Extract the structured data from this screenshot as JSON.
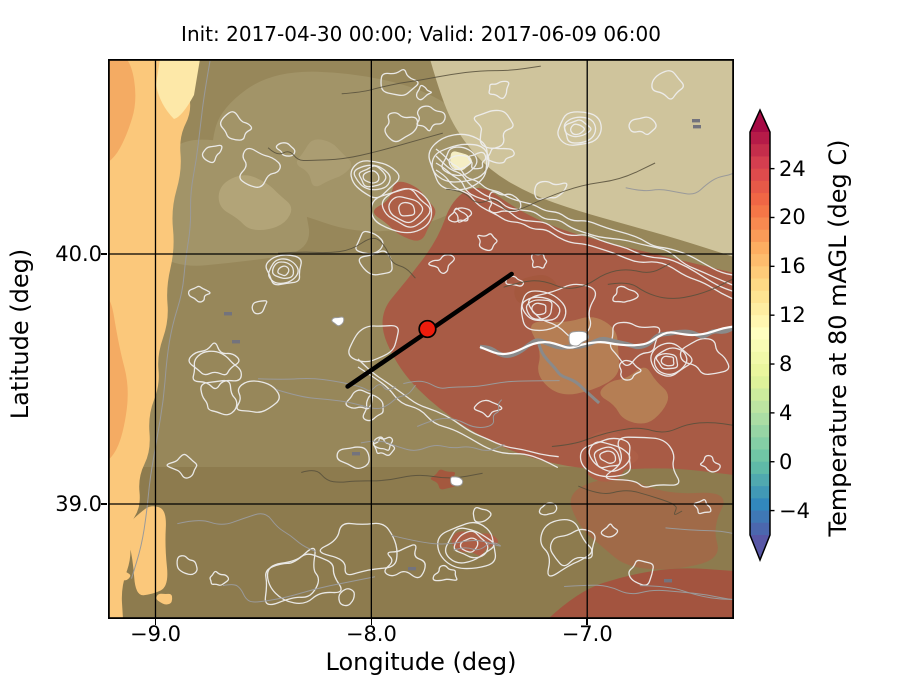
{
  "chart_data": {
    "type": "heatmap",
    "title": "Init: 2017-04-30 00:00; Valid: 2017-06-09 06:00",
    "init_time": "2017-04-30 00:00",
    "valid_time": "2017-06-09 06:00",
    "xlabel": "Longitude (deg)",
    "ylabel": "Latitude (deg)",
    "xlim": [
      -9.22,
      -6.32
    ],
    "ylim": [
      38.54,
      40.78
    ],
    "grid": true,
    "xticks": [
      {
        "value": -9.0,
        "label": "−9.0"
      },
      {
        "value": -8.0,
        "label": "−8.0"
      },
      {
        "value": -7.0,
        "label": "−7.0"
      }
    ],
    "yticks": [
      {
        "value": 40.0,
        "label": "40.0"
      },
      {
        "value": 39.0,
        "label": "39.0"
      }
    ],
    "colorbar": {
      "label": "Temperature at 80 mAGL (deg C)",
      "colormap": "Spectral_r",
      "extend": "both",
      "body_range": [
        -6,
        27
      ],
      "full_range": [
        -7,
        28
      ],
      "band_step": 1,
      "ticks": [
        {
          "value": 24,
          "label": "24"
        },
        {
          "value": 20,
          "label": "20"
        },
        {
          "value": 16,
          "label": "16"
        },
        {
          "value": 12,
          "label": "12"
        },
        {
          "value": 8,
          "label": "8"
        },
        {
          "value": 4,
          "label": "4"
        },
        {
          "value": 0,
          "label": "0"
        },
        {
          "value": -4,
          "label": "−4"
        }
      ],
      "stops": [
        {
          "frac": 0.0,
          "color": "#5e4fa2"
        },
        {
          "frac": 0.1,
          "color": "#3288bd"
        },
        {
          "frac": 0.2,
          "color": "#66c2a5"
        },
        {
          "frac": 0.3,
          "color": "#abdda4"
        },
        {
          "frac": 0.4,
          "color": "#e6f598"
        },
        {
          "frac": 0.5,
          "color": "#ffffbf"
        },
        {
          "frac": 0.6,
          "color": "#fee08b"
        },
        {
          "frac": 0.7,
          "color": "#fdae61"
        },
        {
          "frac": 0.8,
          "color": "#f46d43"
        },
        {
          "frac": 0.9,
          "color": "#d53e4f"
        },
        {
          "frac": 1.0,
          "color": "#9e0142"
        }
      ]
    },
    "marker": {
      "lon": -7.74,
      "lat": 39.7,
      "fill": "#ee1c0c",
      "edge": "#000000"
    },
    "transect": {
      "lon1": -8.11,
      "lat1": 39.47,
      "lon2": -7.35,
      "lat2": 39.92,
      "color": "#000000",
      "width": 4.5
    },
    "map_palette": {
      "ocean": "#fbc87b",
      "ocean_deep": "#f4ab63",
      "coastal_pale": "#fde8a8",
      "olive_base": "#97875a",
      "olive_north": "#a29468",
      "olive_south": "#8d7b4e",
      "khaki_pale_northeast": "#cfc49c",
      "warm_red": "#a85b45",
      "warm_dark_red": "#a3543f",
      "tan_warm": "#b57e54",
      "red_patch": "#ad5f47",
      "cream_peak": "#f5eec4",
      "contour_white": "#eeeeee",
      "contour_gray": "#9a9a9a",
      "contour_dark": "#57503c",
      "grid_color": "#000000"
    }
  }
}
